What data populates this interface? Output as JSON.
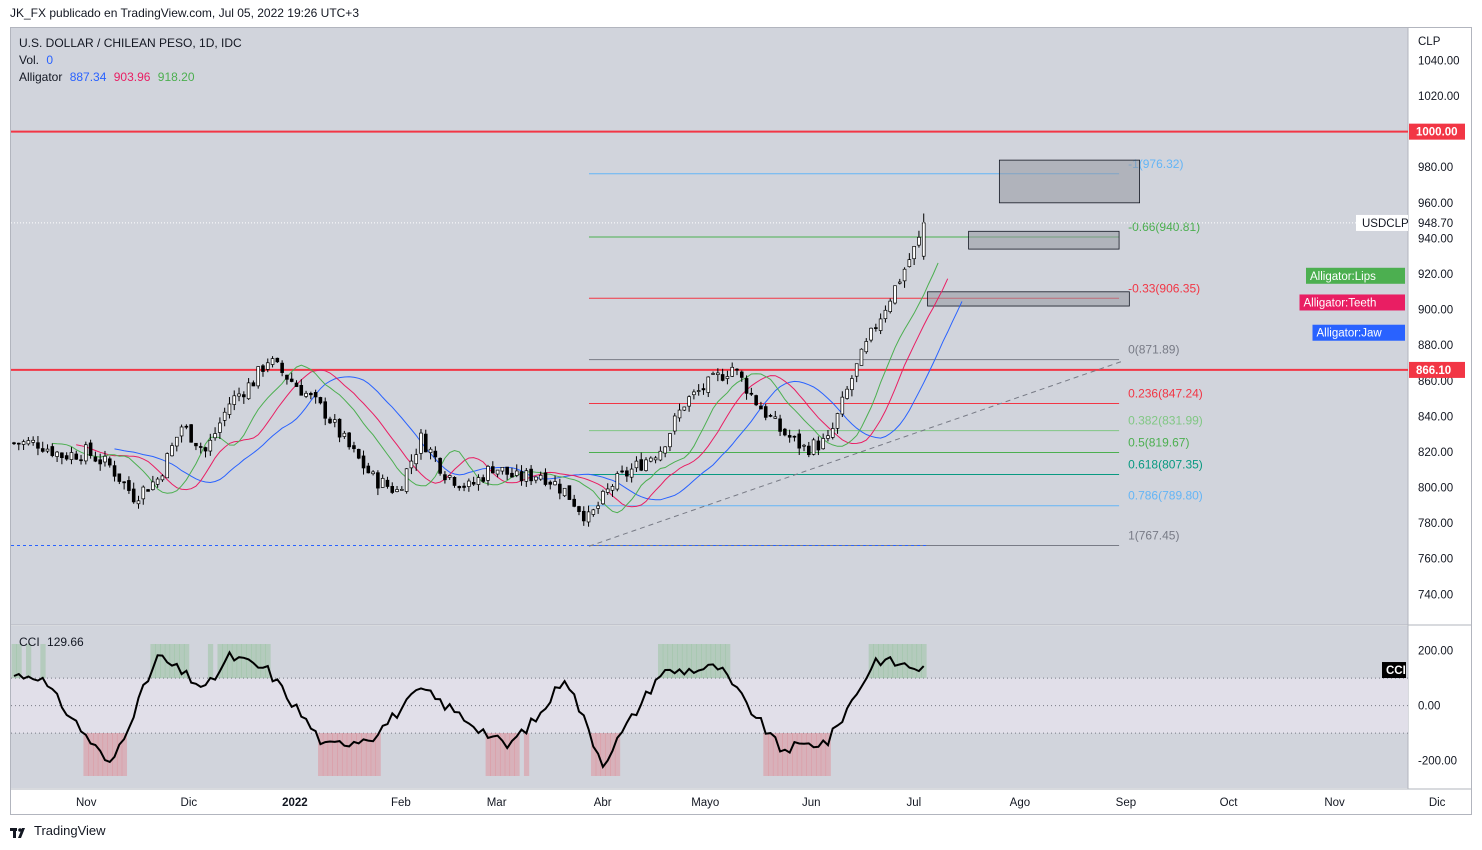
{
  "header": {
    "publisher_line": "JK_FX publicado en TradingView.com, Jul 05, 2022 19:26 UTC+3"
  },
  "legend": {
    "symbol_line": "U.S. DOLLAR / CHILEAN PESO, 1D, IDC",
    "vol_label": "Vol.",
    "vol_value": "0",
    "alligator_label": "Alligator",
    "alligator_jaw": "887.34",
    "alligator_teeth": "903.96",
    "alligator_lips": "918.20"
  },
  "cci_legend": {
    "label": "CCI",
    "value": "129.66"
  },
  "footer": {
    "brand": "TradingView"
  },
  "colors": {
    "jaw": "#2962ff",
    "teeth": "#e91e63",
    "lips": "#4caf50",
    "hline": "#f23645",
    "up": "#ffffff",
    "down": "#000000",
    "bg": "#d1d4dc",
    "cci_bg": "#e2e0ea"
  },
  "chart_data": [
    {
      "type": "candlestick",
      "title": "U.S. DOLLAR / CHILEAN PESO, 1D, IDC",
      "axis_unit": "CLP",
      "ylim": [
        725,
        1056
      ],
      "y_ticks": [
        740,
        760,
        780,
        800,
        820,
        840,
        860,
        880,
        900,
        920,
        940,
        960,
        980,
        1000,
        1020,
        1040
      ],
      "x_ticks": [
        "Nov",
        "Dic",
        "2022",
        "Feb",
        "Mar",
        "Abr",
        "Mayo",
        "Jun",
        "Jul",
        "Ago",
        "Sep",
        "Oct",
        "Nov",
        "Dic"
      ],
      "price_label": {
        "symbol": "USDCLP",
        "value": "948.70",
        "price": 948.7
      },
      "horizontal_lines": [
        {
          "label": "1000.00",
          "price": 1000.0
        },
        {
          "label": "866.10",
          "price": 866.1
        }
      ],
      "fibonacci": [
        {
          "text": "-1(976.32)",
          "price": 976.32,
          "color": "#64b5f6"
        },
        {
          "text": "-0.66(940.81)",
          "price": 940.81,
          "color": "#4caf50"
        },
        {
          "text": "-0.33(906.35)",
          "price": 906.35,
          "color": "#f23645"
        },
        {
          "text": "0(871.89)",
          "price": 871.89,
          "color": "#787b86"
        },
        {
          "text": "0.236(847.24)",
          "price": 847.24,
          "color": "#f23645"
        },
        {
          "text": "0.382(831.99)",
          "price": 831.99,
          "color": "#81c784"
        },
        {
          "text": "0.5(819.67)",
          "price": 819.67,
          "color": "#4caf50"
        },
        {
          "text": "0.618(807.35)",
          "price": 807.35,
          "color": "#089981"
        },
        {
          "text": "0.786(789.80)",
          "price": 789.8,
          "color": "#64b5f6"
        },
        {
          "text": "1(767.45)",
          "price": 767.45,
          "color": "#787b86"
        }
      ],
      "alligator_tags": [
        {
          "text": "Alligator:Lips",
          "color": "#4caf50",
          "price": 919
        },
        {
          "text": "Alligator:Teeth",
          "color": "#e91e63",
          "price": 904
        },
        {
          "text": "Alligator:Jaw",
          "color": "#2962ff",
          "price": 887
        }
      ],
      "series": [
        {
          "name": "USDCLP close (approx.)",
          "points": [
            [
              "2021-10-18",
              825
            ],
            [
              "2021-10-25",
              818
            ],
            [
              "2021-11-01",
              820
            ],
            [
              "2021-11-08",
              812
            ],
            [
              "2021-11-15",
              795
            ],
            [
              "2021-11-22",
              805
            ],
            [
              "2021-11-29",
              835
            ],
            [
              "2021-12-06",
              820
            ],
            [
              "2021-12-13",
              848
            ],
            [
              "2021-12-20",
              860
            ],
            [
              "2021-12-24",
              872
            ],
            [
              "2022-01-03",
              855
            ],
            [
              "2022-01-10",
              842
            ],
            [
              "2022-01-17",
              822
            ],
            [
              "2022-01-24",
              805
            ],
            [
              "2022-01-31",
              798
            ],
            [
              "2022-02-07",
              828
            ],
            [
              "2022-02-14",
              808
            ],
            [
              "2022-02-21",
              800
            ],
            [
              "2022-02-28",
              812
            ],
            [
              "2022-03-07",
              805
            ],
            [
              "2022-03-14",
              808
            ],
            [
              "2022-03-21",
              798
            ],
            [
              "2022-03-28",
              782
            ],
            [
              "2022-04-04",
              802
            ],
            [
              "2022-04-11",
              812
            ],
            [
              "2022-04-18",
              822
            ],
            [
              "2022-04-25",
              848
            ],
            [
              "2022-05-02",
              858
            ],
            [
              "2022-05-09",
              868
            ],
            [
              "2022-05-16",
              848
            ],
            [
              "2022-05-23",
              832
            ],
            [
              "2022-05-30",
              822
            ],
            [
              "2022-06-06",
              826
            ],
            [
              "2022-06-13",
              862
            ],
            [
              "2022-06-20",
              892
            ],
            [
              "2022-06-27",
              918
            ],
            [
              "2022-07-05",
              948.7
            ]
          ]
        }
      ]
    },
    {
      "type": "line",
      "title": "CCI",
      "value_label": "129.66",
      "ylim": [
        -300,
        290
      ],
      "y_ticks": [
        200,
        0,
        -200
      ],
      "overbought": 100,
      "oversold": -100,
      "tag": "CCI",
      "series": [
        {
          "name": "CCI (approx.)",
          "points": [
            [
              "2021-10-18",
              110
            ],
            [
              "2021-11-08",
              -220
            ],
            [
              "2021-11-22",
              180
            ],
            [
              "2021-12-06",
              60
            ],
            [
              "2021-12-13",
              180
            ],
            [
              "2021-12-24",
              130
            ],
            [
              "2022-01-10",
              -150
            ],
            [
              "2022-01-24",
              -110
            ],
            [
              "2022-02-07",
              60
            ],
            [
              "2022-03-04",
              -150
            ],
            [
              "2022-03-14",
              -30
            ],
            [
              "2022-03-21",
              110
            ],
            [
              "2022-04-01",
              -210
            ],
            [
              "2022-04-18",
              120
            ],
            [
              "2022-05-05",
              140
            ],
            [
              "2022-05-23",
              -160
            ],
            [
              "2022-06-06",
              -130
            ],
            [
              "2022-06-20",
              170
            ],
            [
              "2022-07-05",
              129.66
            ]
          ]
        }
      ]
    }
  ]
}
